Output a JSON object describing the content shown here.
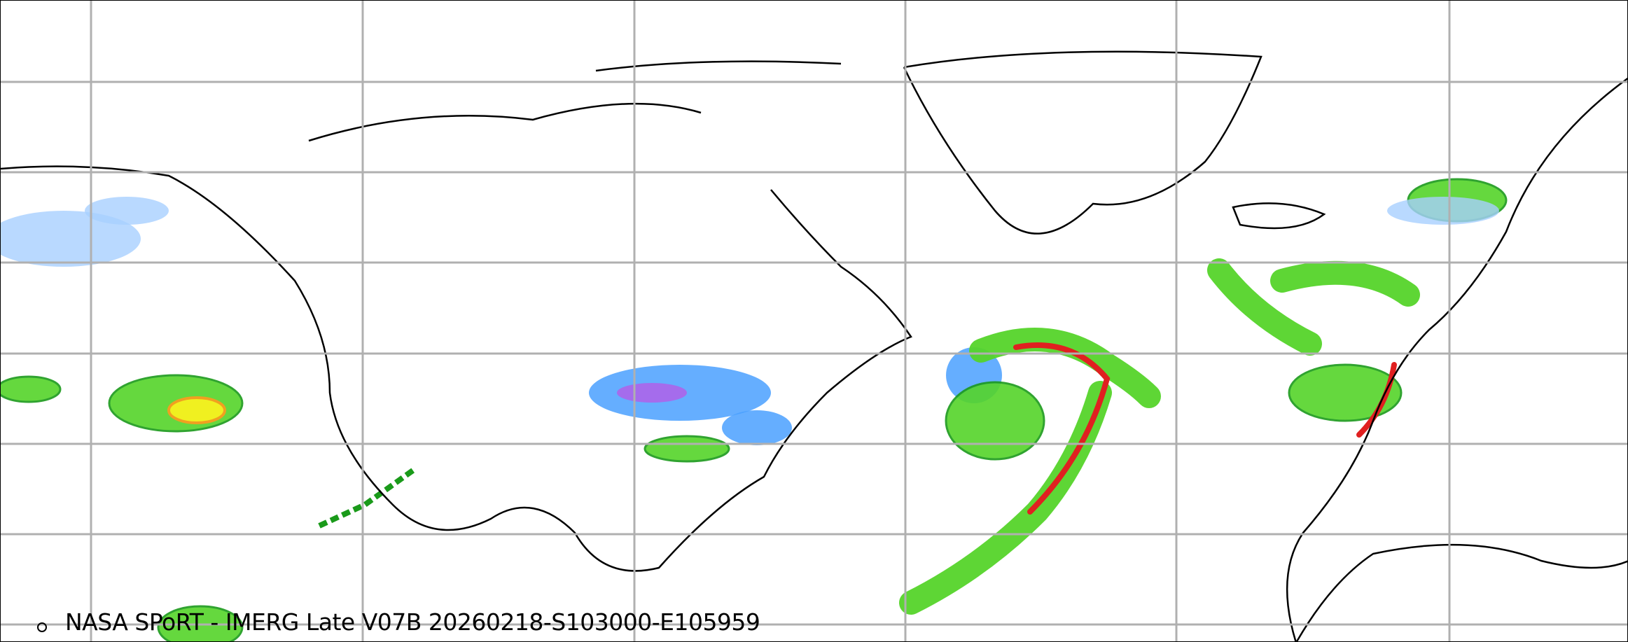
{
  "caption": "NASA SPoRT - IMERG Late V07B 20260218-S103000-E105959",
  "colors": {
    "grid": "#b0b0b0",
    "coast": "#000000",
    "light_blue": "#4aa0ff",
    "pale_blue": "#a8d0ff",
    "green_dark": "#1a9a1a",
    "green": "#55d42a",
    "yellow": "#f0f020",
    "orange": "#f0a020",
    "red": "#e02020",
    "magenta": "#d040e0"
  },
  "projection": "equirectangular",
  "gridlines": true
}
